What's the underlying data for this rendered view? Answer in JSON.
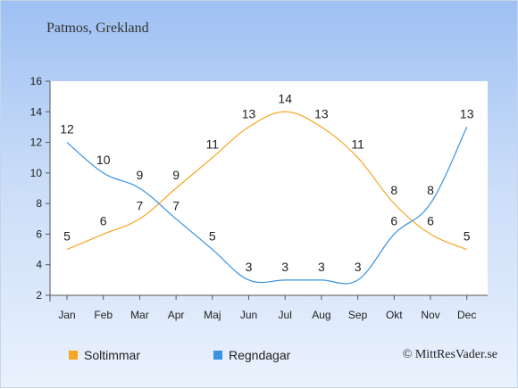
{
  "title": "Patmos, Grekland",
  "credit": "© MittResVader.se",
  "chart_data": {
    "type": "line",
    "categories": [
      "Jan",
      "Feb",
      "Mar",
      "Apr",
      "Maj",
      "Jun",
      "Jul",
      "Aug",
      "Sep",
      "Okt",
      "Nov",
      "Dec"
    ],
    "ylim": [
      2,
      16
    ],
    "yticks": [
      2,
      4,
      6,
      8,
      10,
      12,
      14,
      16
    ],
    "series": [
      {
        "name": "Soltimmar",
        "color": "#f5a623",
        "values": [
          5,
          6,
          7,
          9,
          11,
          13,
          14,
          13,
          11,
          8,
          6,
          5
        ]
      },
      {
        "name": "Regndagar",
        "color": "#3a93e0",
        "values": [
          12,
          10,
          9,
          7,
          5,
          3,
          3,
          3,
          3,
          6,
          8,
          13
        ]
      }
    ]
  }
}
